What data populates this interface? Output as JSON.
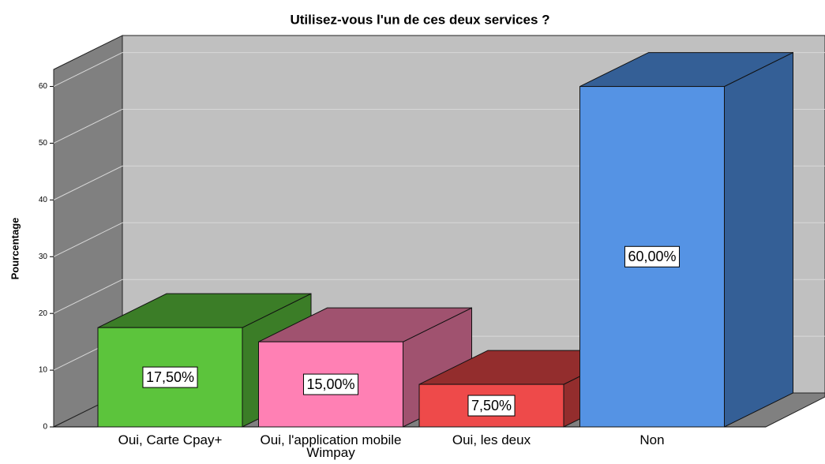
{
  "chart_data": {
    "type": "bar3d",
    "title": "Utilisez-vous l'un de ces deux services ?",
    "y_label": "Pourcentage",
    "categories": [
      "Oui, Carte Cpay+",
      "Oui, l'application mobile Wimpay",
      "Oui, les deux",
      "Non"
    ],
    "values": [
      17.5,
      15,
      7.5,
      60
    ],
    "value_labels": [
      "17,50%",
      "15,00%",
      "7,50%",
      "60,00%"
    ],
    "colors": [
      "#5cc43c",
      "#ff80b4",
      "#ee4a4a",
      "#5593e4"
    ],
    "dark_colors": [
      "#3b7d27",
      "#a0526f",
      "#932d2d",
      "#345f96"
    ],
    "ylim": [
      0,
      63
    ],
    "yticks": [
      0,
      10,
      20,
      30,
      40,
      50,
      60
    ],
    "grid": true
  }
}
